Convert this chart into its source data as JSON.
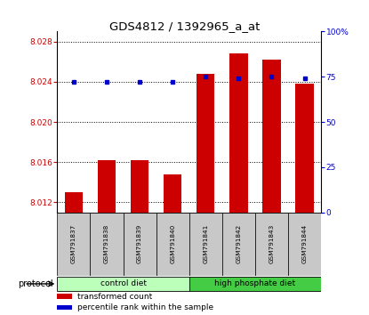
{
  "title": "GDS4812 / 1392965_a_at",
  "samples": [
    "GSM791837",
    "GSM791838",
    "GSM791839",
    "GSM791840",
    "GSM791841",
    "GSM791842",
    "GSM791843",
    "GSM791844"
  ],
  "transformed_counts": [
    8.013,
    8.0162,
    8.0162,
    8.0148,
    8.0248,
    8.0268,
    8.0262,
    8.0238
  ],
  "percentile_ranks": [
    72,
    72,
    72,
    72,
    75,
    74,
    75,
    74
  ],
  "ylim_left": [
    8.011,
    8.029
  ],
  "ylim_right": [
    0,
    100
  ],
  "yticks_left": [
    8.012,
    8.016,
    8.02,
    8.024,
    8.028
  ],
  "yticks_right": [
    0,
    25,
    50,
    75,
    100
  ],
  "bar_color": "#cc0000",
  "dot_color": "#0000cc",
  "groups": [
    {
      "label": "control diet",
      "indices": [
        0,
        1,
        2,
        3
      ],
      "color": "#bbffbb"
    },
    {
      "label": "high phosphate diet",
      "indices": [
        4,
        5,
        6,
        7
      ],
      "color": "#44cc44"
    }
  ],
  "protocol_label": "protocol",
  "legend_items": [
    {
      "label": "transformed count",
      "color": "#cc0000"
    },
    {
      "label": "percentile rank within the sample",
      "color": "#0000cc"
    }
  ],
  "background_color": "#ffffff",
  "tick_label_color_left": "#cc0000",
  "tick_label_color_right": "#0000cc",
  "sample_box_color": "#c8c8c8",
  "bar_bottom": 8.011
}
